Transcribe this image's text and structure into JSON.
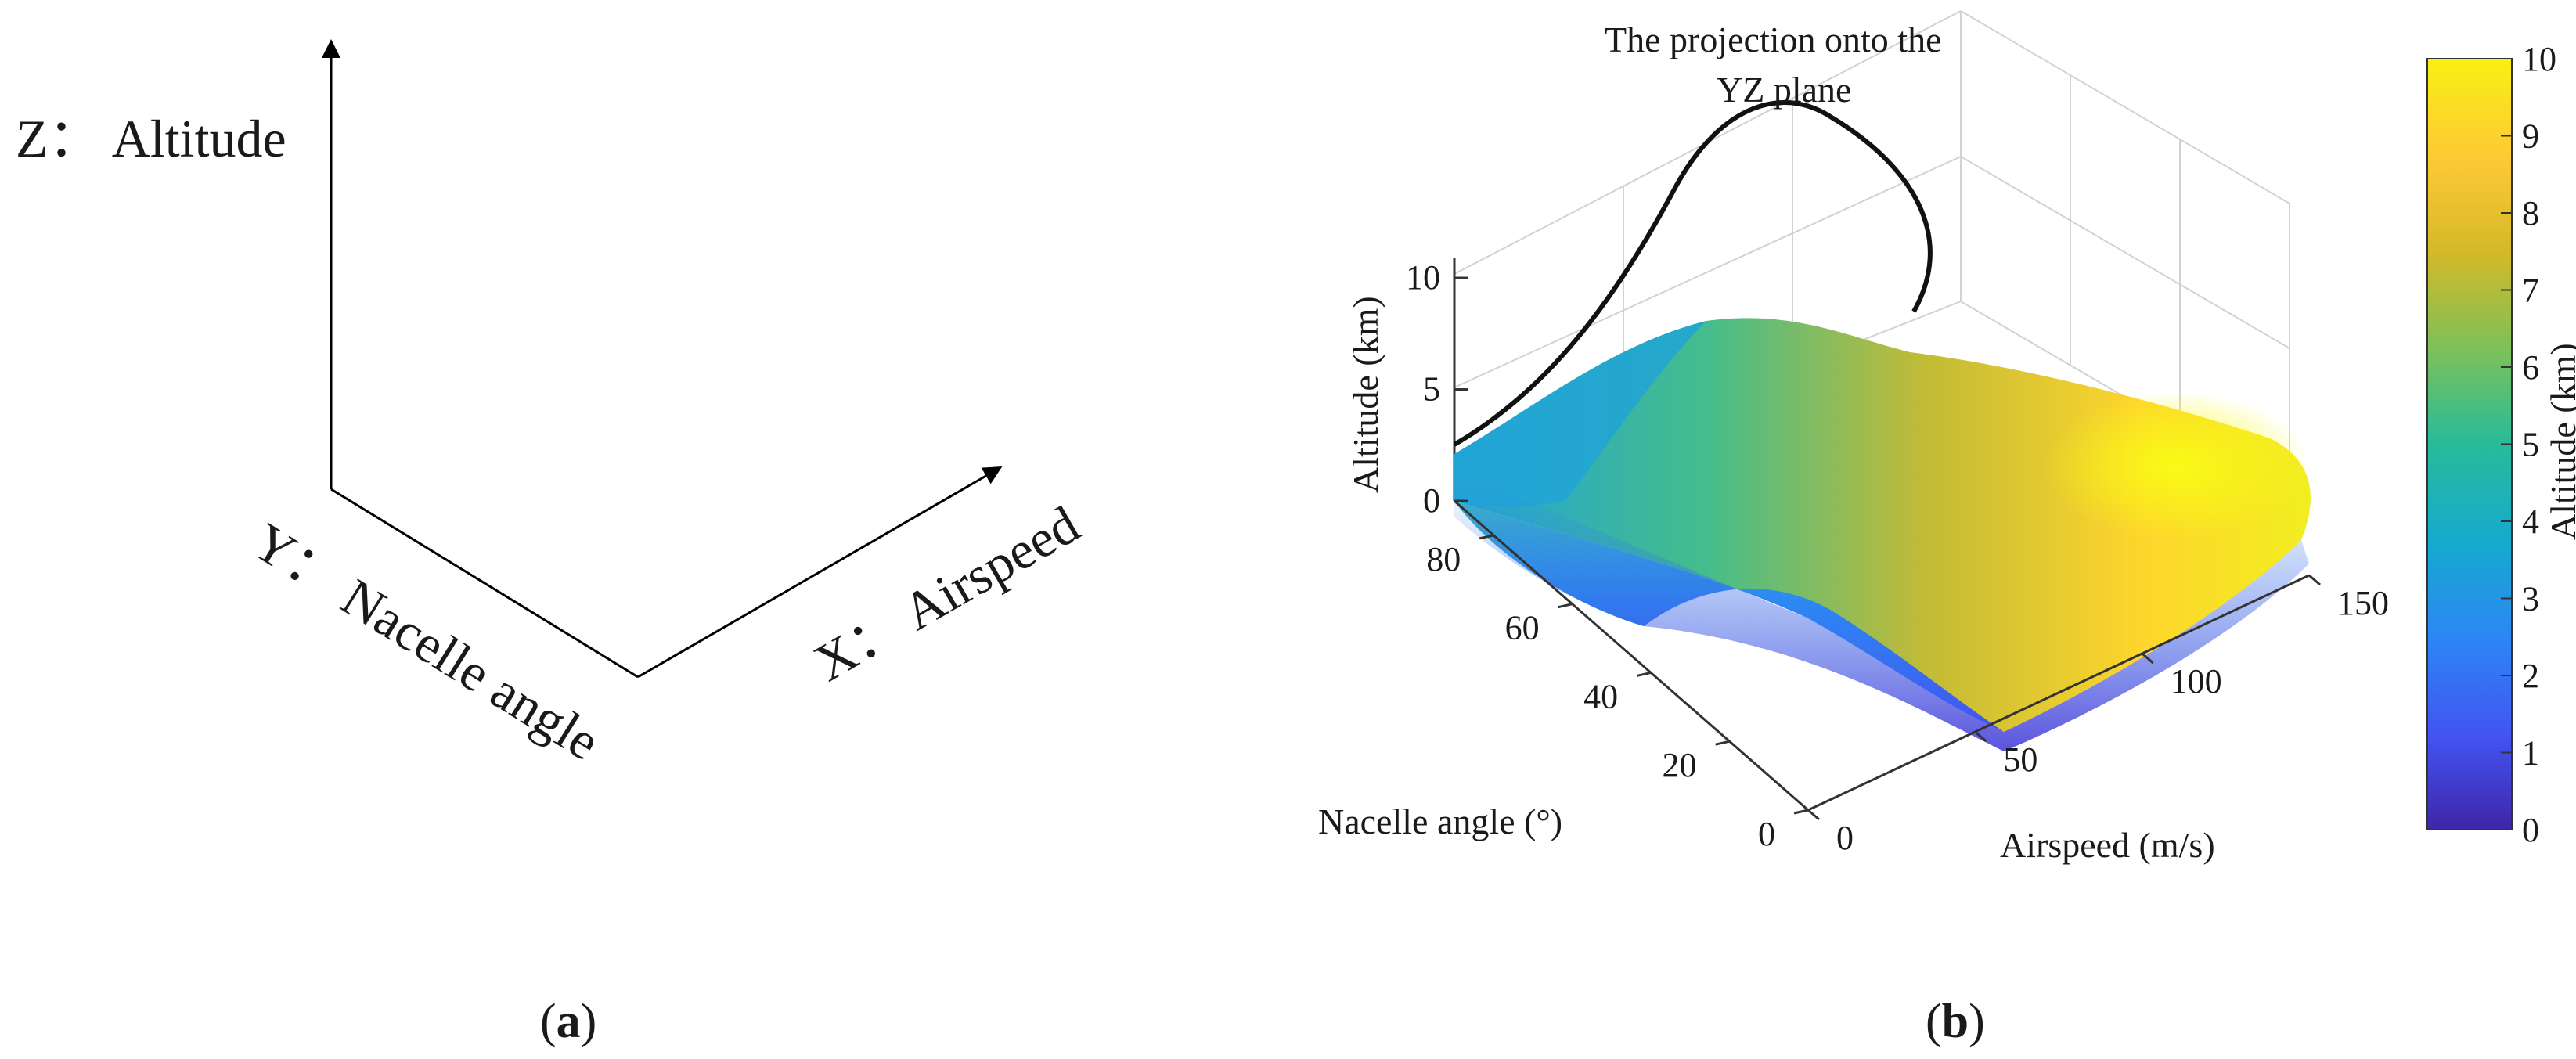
{
  "panel_a": {
    "z_label": "Z： Altitude",
    "y_label": "Y： Nacelle angle",
    "x_label": "X： Airspeed",
    "caption_open": "(",
    "caption_letter": "a",
    "caption_close": ")"
  },
  "panel_b": {
    "caption_open": "(",
    "caption_letter": "b",
    "caption_close": ")",
    "annotation_line1": "The projection onto the",
    "annotation_line2": "YZ plane"
  },
  "chart_data": {
    "type": "surface",
    "xlabel": "Airspeed (m/s)",
    "ylabel": "Nacelle angle (°)",
    "zlabel": "Altitude (km)",
    "x_ticks": [
      "0",
      "50",
      "100",
      "150"
    ],
    "y_ticks": [
      "0",
      "20",
      "40",
      "60",
      "80"
    ],
    "z_ticks": [
      "0",
      "5",
      "10"
    ],
    "xlim": [
      0,
      150
    ],
    "ylim": [
      0,
      90
    ],
    "zlim": [
      0,
      10
    ],
    "colorbar": {
      "label": "Altitude (km)",
      "ticks": [
        "0",
        "1",
        "2",
        "3",
        "4",
        "5",
        "6",
        "7",
        "8",
        "9",
        "10"
      ],
      "range": [
        0,
        10
      ],
      "colormap": "parula",
      "colors": [
        "#3e26a8",
        "#4353f1",
        "#2c87f4",
        "#16a9cf",
        "#28bb9a",
        "#7bc05a",
        "#d5b928",
        "#fec935",
        "#f8f014"
      ]
    },
    "grid": true,
    "projection_curve_yz": {
      "description_label": "The projection onto the YZ plane",
      "points_y_z": [
        [
          90,
          2.5
        ],
        [
          80,
          5.5
        ],
        [
          70,
          8.5
        ],
        [
          60,
          11.0
        ],
        [
          50,
          12.6
        ],
        [
          40,
          12.8
        ],
        [
          30,
          11.8
        ],
        [
          22,
          9.5
        ]
      ]
    }
  }
}
